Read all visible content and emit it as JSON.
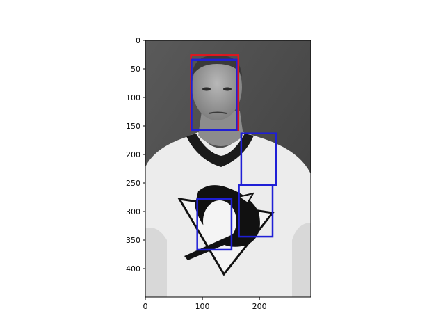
{
  "image": {
    "description_icon": "person-photo-icon",
    "xlim": [
      0,
      290
    ],
    "ylim": [
      450,
      0
    ],
    "x_ticks": [
      0,
      100,
      200
    ],
    "y_ticks": [
      0,
      50,
      100,
      150,
      200,
      250,
      300,
      350,
      400
    ]
  },
  "boxes": [
    {
      "label": "red-face-box",
      "color": "#e0161e",
      "x0": 80,
      "y0": 26,
      "x1": 163,
      "y1": 157
    },
    {
      "label": "blue-face-box",
      "color": "#1f1fd6",
      "x0": 81,
      "y0": 34,
      "x1": 160,
      "y1": 157
    },
    {
      "label": "blue-box-shoulder",
      "color": "#1f1fd6",
      "x0": 168,
      "y0": 163,
      "x1": 229,
      "y1": 254
    },
    {
      "label": "blue-box-logo-right",
      "color": "#1f1fd6",
      "x0": 164,
      "y0": 254,
      "x1": 223,
      "y1": 344
    },
    {
      "label": "blue-box-logo-center",
      "color": "#1f1fd6",
      "x0": 91,
      "y0": 278,
      "x1": 151,
      "y1": 367
    }
  ]
}
